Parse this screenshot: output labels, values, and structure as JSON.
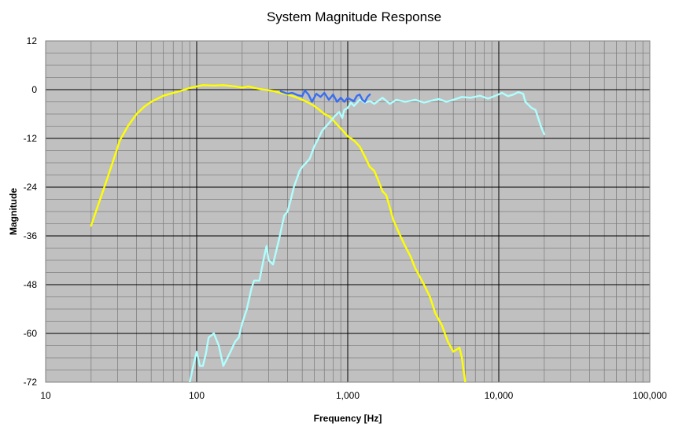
{
  "chart_data": {
    "type": "line",
    "title": "System Magnitude Response",
    "xlabel": "Frequency [Hz]",
    "ylabel": "Magnitude",
    "x_scale": "log",
    "xlim": [
      10,
      100000
    ],
    "ylim": [
      -72,
      12
    ],
    "x_ticks": [
      10,
      100,
      1000,
      10000,
      100000
    ],
    "x_tick_labels": [
      "10",
      "100",
      "1,000",
      "10,000",
      "100,000"
    ],
    "y_ticks": [
      12,
      0,
      -12,
      -24,
      -36,
      -48,
      -60,
      -72
    ],
    "y_tick_labels": [
      "12",
      "0",
      "-12",
      "-24",
      "-36",
      "-48",
      "-60",
      "-72"
    ],
    "grid": true,
    "plot_background": "#c0c0c0",
    "series": [
      {
        "color": "#ffff00",
        "points": [
          [
            20,
            -33.5
          ],
          [
            22,
            -29
          ],
          [
            25,
            -23
          ],
          [
            28,
            -17.5
          ],
          [
            31,
            -12.5
          ],
          [
            35,
            -9
          ],
          [
            40,
            -6
          ],
          [
            45,
            -4.2
          ],
          [
            50,
            -3
          ],
          [
            60,
            -1.5
          ],
          [
            70,
            -0.8
          ],
          [
            80,
            -0.2
          ],
          [
            90,
            0.4
          ],
          [
            100,
            0.8
          ],
          [
            110,
            1.1
          ],
          [
            130,
            1
          ],
          [
            150,
            1.1
          ],
          [
            180,
            0.8
          ],
          [
            200,
            0.5
          ],
          [
            220,
            0.8
          ],
          [
            250,
            0.3
          ],
          [
            280,
            0
          ],
          [
            320,
            -0.3
          ],
          [
            360,
            -0.8
          ],
          [
            400,
            -1.2
          ],
          [
            450,
            -1.8
          ],
          [
            500,
            -2.5
          ],
          [
            550,
            -3.2
          ],
          [
            600,
            -4
          ],
          [
            650,
            -5
          ],
          [
            700,
            -6
          ],
          [
            750,
            -6.5
          ],
          [
            800,
            -7.5
          ],
          [
            870,
            -9
          ],
          [
            950,
            -10.5
          ],
          [
            1000,
            -11.5
          ],
          [
            1100,
            -12.5
          ],
          [
            1200,
            -14
          ],
          [
            1300,
            -16.5
          ],
          [
            1400,
            -19
          ],
          [
            1500,
            -20
          ],
          [
            1600,
            -22.5
          ],
          [
            1700,
            -25
          ],
          [
            1800,
            -26
          ],
          [
            1900,
            -29
          ],
          [
            2000,
            -32
          ],
          [
            2200,
            -35.5
          ],
          [
            2400,
            -38.5
          ],
          [
            2600,
            -41
          ],
          [
            2800,
            -44
          ],
          [
            3000,
            -46
          ],
          [
            3200,
            -48
          ],
          [
            3500,
            -51
          ],
          [
            3800,
            -55
          ],
          [
            4200,
            -58
          ],
          [
            4600,
            -62
          ],
          [
            5000,
            -64.5
          ],
          [
            5500,
            -63.5
          ],
          [
            5700,
            -66
          ],
          [
            6000,
            -72
          ]
        ]
      },
      {
        "color": "#b0ffff",
        "points": [
          [
            90,
            -72
          ],
          [
            95,
            -68
          ],
          [
            100,
            -64.5
          ],
          [
            105,
            -68
          ],
          [
            110,
            -68
          ],
          [
            115,
            -65
          ],
          [
            120,
            -61
          ],
          [
            130,
            -60
          ],
          [
            140,
            -63
          ],
          [
            150,
            -68
          ],
          [
            160,
            -66
          ],
          [
            170,
            -64
          ],
          [
            180,
            -62
          ],
          [
            190,
            -61
          ],
          [
            200,
            -57.5
          ],
          [
            215,
            -54
          ],
          [
            230,
            -49
          ],
          [
            240,
            -47
          ],
          [
            260,
            -47
          ],
          [
            280,
            -41
          ],
          [
            290,
            -38.5
          ],
          [
            300,
            -42
          ],
          [
            320,
            -43
          ],
          [
            350,
            -37
          ],
          [
            380,
            -31
          ],
          [
            400,
            -30
          ],
          [
            420,
            -27
          ],
          [
            440,
            -24
          ],
          [
            460,
            -22
          ],
          [
            480,
            -20
          ],
          [
            500,
            -19
          ],
          [
            530,
            -18
          ],
          [
            560,
            -17
          ],
          [
            600,
            -14
          ],
          [
            640,
            -12
          ],
          [
            680,
            -10
          ],
          [
            720,
            -9
          ],
          [
            780,
            -7.5
          ],
          [
            820,
            -6.5
          ],
          [
            880,
            -5.5
          ],
          [
            920,
            -7
          ],
          [
            950,
            -5
          ],
          [
            1000,
            -4.5
          ],
          [
            1050,
            -3.2
          ],
          [
            1100,
            -4
          ],
          [
            1200,
            -2.5
          ],
          [
            1300,
            -3.2
          ],
          [
            1400,
            -2.8
          ],
          [
            1500,
            -3.5
          ],
          [
            1700,
            -2
          ],
          [
            1900,
            -3.5
          ],
          [
            2100,
            -2.5
          ],
          [
            2400,
            -3
          ],
          [
            2800,
            -2.5
          ],
          [
            3200,
            -3.2
          ],
          [
            3600,
            -2.7
          ],
          [
            4000,
            -2.3
          ],
          [
            4500,
            -3
          ],
          [
            5000,
            -2.5
          ],
          [
            5700,
            -1.8
          ],
          [
            6500,
            -2
          ],
          [
            7500,
            -1.5
          ],
          [
            8500,
            -2.2
          ],
          [
            9500,
            -1.5
          ],
          [
            10500,
            -0.8
          ],
          [
            11500,
            -1.6
          ],
          [
            12500,
            -1.2
          ],
          [
            13500,
            -0.6
          ],
          [
            14500,
            -1
          ],
          [
            15000,
            -3
          ],
          [
            16500,
            -4.5
          ],
          [
            17500,
            -5
          ],
          [
            19000,
            -9
          ],
          [
            20000,
            -11
          ]
        ]
      },
      {
        "color": "#3a6ef0",
        "points": [
          [
            360,
            -0.4
          ],
          [
            400,
            -1
          ],
          [
            430,
            -0.8
          ],
          [
            470,
            -1.4
          ],
          [
            500,
            -1.6
          ],
          [
            520,
            -0.2
          ],
          [
            550,
            -1.2
          ],
          [
            580,
            -3
          ],
          [
            620,
            -1
          ],
          [
            660,
            -1.8
          ],
          [
            700,
            -0.8
          ],
          [
            750,
            -2.5
          ],
          [
            800,
            -1.2
          ],
          [
            850,
            -3
          ],
          [
            900,
            -2
          ],
          [
            950,
            -3
          ],
          [
            1000,
            -2
          ],
          [
            1050,
            -2.5
          ],
          [
            1100,
            -2.8
          ],
          [
            1150,
            -1.5
          ],
          [
            1200,
            -1.2
          ],
          [
            1250,
            -2.5
          ],
          [
            1300,
            -3
          ],
          [
            1350,
            -1.8
          ],
          [
            1400,
            -1.2
          ]
        ]
      }
    ]
  }
}
